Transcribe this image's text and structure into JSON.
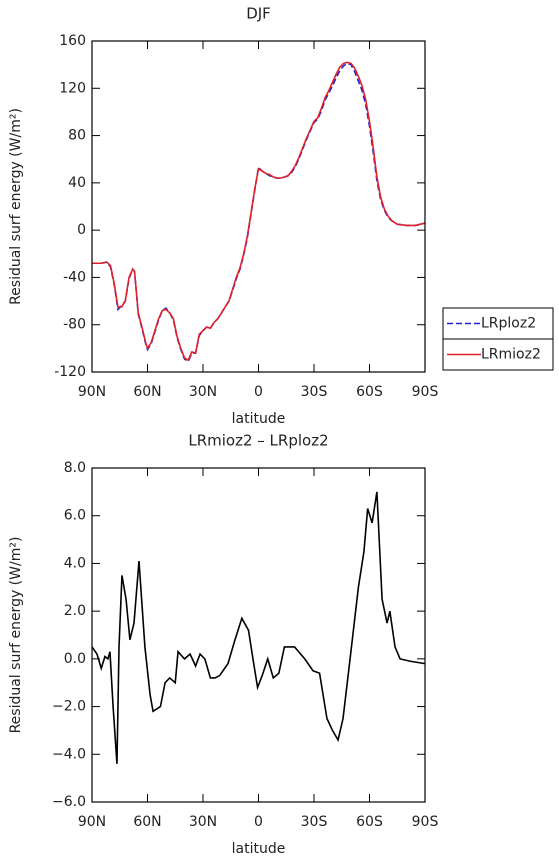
{
  "chart_data": [
    {
      "type": "line",
      "title": "DJF",
      "xlabel": "latitude",
      "ylabel": "Residual surf energy (W/m²)",
      "x": [
        90,
        85,
        82,
        80,
        78,
        76,
        74,
        72,
        70,
        68,
        67,
        65,
        63,
        61,
        60,
        58,
        56,
        54,
        52,
        50,
        48,
        46,
        44,
        42,
        40,
        38,
        36,
        34,
        32,
        30,
        28,
        26,
        24,
        22,
        20,
        18,
        16,
        14,
        12,
        10,
        8,
        6,
        4,
        2,
        0,
        -2,
        -4,
        -6,
        -8,
        -10,
        -12,
        -14,
        -16,
        -18,
        -20,
        -22,
        -24,
        -26,
        -28,
        -30,
        -32,
        -34,
        -36,
        -38,
        -40,
        -42,
        -44,
        -46,
        -48,
        -50,
        -52,
        -54,
        -56,
        -58,
        -60,
        -62,
        -64,
        -66,
        -68,
        -70,
        -72,
        -75,
        -80,
        -85,
        -90
      ],
      "series": [
        {
          "name": "LRploz2",
          "color": "#2020d0",
          "dash": true,
          "values": [
            -28,
            -28,
            -27,
            -31,
            -46,
            -67,
            -64,
            -60,
            -41,
            -33,
            -35,
            -71,
            -83,
            -96,
            -101,
            -96,
            -86,
            -76,
            -68,
            -66,
            -70,
            -76,
            -91,
            -101,
            -109,
            -111,
            -104,
            -104,
            -89,
            -85,
            -82,
            -83,
            -78,
            -75,
            -70,
            -65,
            -60,
            -51,
            -41,
            -33,
            -21,
            -6,
            14,
            34,
            53,
            50,
            48,
            46,
            45,
            44,
            44,
            45,
            46,
            49,
            54,
            61,
            69,
            77,
            84,
            91,
            94,
            101,
            110,
            116,
            122,
            129,
            135,
            139,
            141,
            140,
            134,
            126,
            118,
            106,
            88,
            66,
            42,
            26,
            17,
            11,
            8,
            5,
            4,
            4,
            6
          ]
        },
        {
          "name": "LRmioz2",
          "color": "#e0202a",
          "dash": false,
          "values": [
            -28,
            -28,
            -27,
            -30,
            -45,
            -65,
            -65,
            -60,
            -40,
            -33,
            -35,
            -70,
            -82,
            -95,
            -100,
            -95,
            -85,
            -75,
            -68,
            -67,
            -70,
            -75,
            -90,
            -100,
            -108,
            -110,
            -103,
            -104,
            -88,
            -85,
            -82,
            -83,
            -78,
            -75,
            -70,
            -65,
            -60,
            -50,
            -40,
            -32,
            -20,
            -5,
            15,
            35,
            52,
            50,
            48,
            47,
            45,
            44,
            44,
            45,
            46,
            50,
            55,
            62,
            70,
            78,
            85,
            92,
            95,
            103,
            112,
            118,
            125,
            132,
            138,
            141,
            142,
            141,
            137,
            130,
            122,
            110,
            92,
            70,
            45,
            28,
            18,
            12,
            8,
            5,
            4,
            4,
            6
          ]
        }
      ],
      "xlim": [
        90,
        -90
      ],
      "xticks": [
        {
          "value": 90,
          "label": "90N"
        },
        {
          "value": 60,
          "label": "60N"
        },
        {
          "value": 30,
          "label": "30N"
        },
        0,
        {
          "value": -30,
          "label": "30S"
        },
        {
          "value": -60,
          "label": "60S"
        },
        {
          "value": -90,
          "label": "90S"
        }
      ],
      "ylim": [
        -120,
        160
      ],
      "yticks": [
        -120,
        -80,
        -40,
        0,
        40,
        80,
        120,
        160
      ],
      "legend": "right"
    },
    {
      "type": "line",
      "title": "LRmioz2 – LRploz2",
      "xlabel": "latitude",
      "ylabel": "Residual surf energy (W/m²)",
      "x": [
        90,
        87.3,
        85,
        83,
        81.4,
        80.3,
        78.6,
        76.5,
        75.4,
        73.8,
        71.6,
        69.5,
        67.3,
        64.6,
        61.4,
        58.6,
        57,
        53,
        50.5,
        48,
        45,
        43.5,
        40,
        37,
        34,
        31.6,
        29,
        26,
        23.5,
        21,
        16.5,
        12.7,
        9,
        5.4,
        3,
        0.5,
        -2,
        -5,
        -8,
        -11,
        -14,
        -19.5,
        -25,
        -29.5,
        -33,
        -37,
        -40,
        -43,
        -45.7,
        -49.5,
        -54,
        -57,
        -59,
        -61.4,
        -64,
        -66.8,
        -69.5,
        -71,
        -73.8,
        -76.5,
        -82,
        -90
      ],
      "series": [
        {
          "color": "#000000",
          "dash": false,
          "values": [
            0.5,
            0.2,
            -0.4,
            0.1,
            0.0,
            0.3,
            -2.0,
            -4.4,
            0.5,
            3.5,
            2.5,
            0.8,
            1.5,
            4.1,
            0.5,
            -1.5,
            -2.2,
            -2.0,
            -1.0,
            -0.8,
            -1.0,
            0.3,
            0.0,
            0.2,
            -0.3,
            0.2,
            0.0,
            -0.8,
            -0.8,
            -0.7,
            -0.2,
            0.8,
            1.7,
            1.2,
            0.0,
            -1.2,
            -0.7,
            0.0,
            -0.8,
            -0.6,
            0.5,
            0.5,
            0.0,
            -0.5,
            -0.6,
            -2.5,
            -3.0,
            -3.4,
            -2.5,
            0.0,
            3.0,
            4.5,
            6.3,
            5.7,
            7.0,
            2.5,
            1.5,
            2.0,
            0.5,
            0.0,
            -0.1,
            -0.2
          ]
        }
      ],
      "xlim": [
        90,
        -90
      ],
      "xticks": [
        {
          "value": 90,
          "label": "90N"
        },
        {
          "value": 60,
          "label": "60N"
        },
        {
          "value": 30,
          "label": "30N"
        },
        0,
        {
          "value": -30,
          "label": "30S"
        },
        {
          "value": -60,
          "label": "60S"
        },
        {
          "value": -90,
          "label": "90S"
        }
      ],
      "ylim": [
        -6,
        8
      ],
      "yticks": [
        {
          "value": -6,
          "label": "−6.0"
        },
        {
          "value": -4,
          "label": "−4.0"
        },
        {
          "value": -2,
          "label": "−2.0"
        },
        {
          "value": 0,
          "label": "0.0"
        },
        {
          "value": 2,
          "label": "2.0"
        },
        {
          "value": 4,
          "label": "4.0"
        },
        {
          "value": 6,
          "label": "6.0"
        },
        {
          "value": 8,
          "label": "8.0"
        }
      ]
    }
  ]
}
